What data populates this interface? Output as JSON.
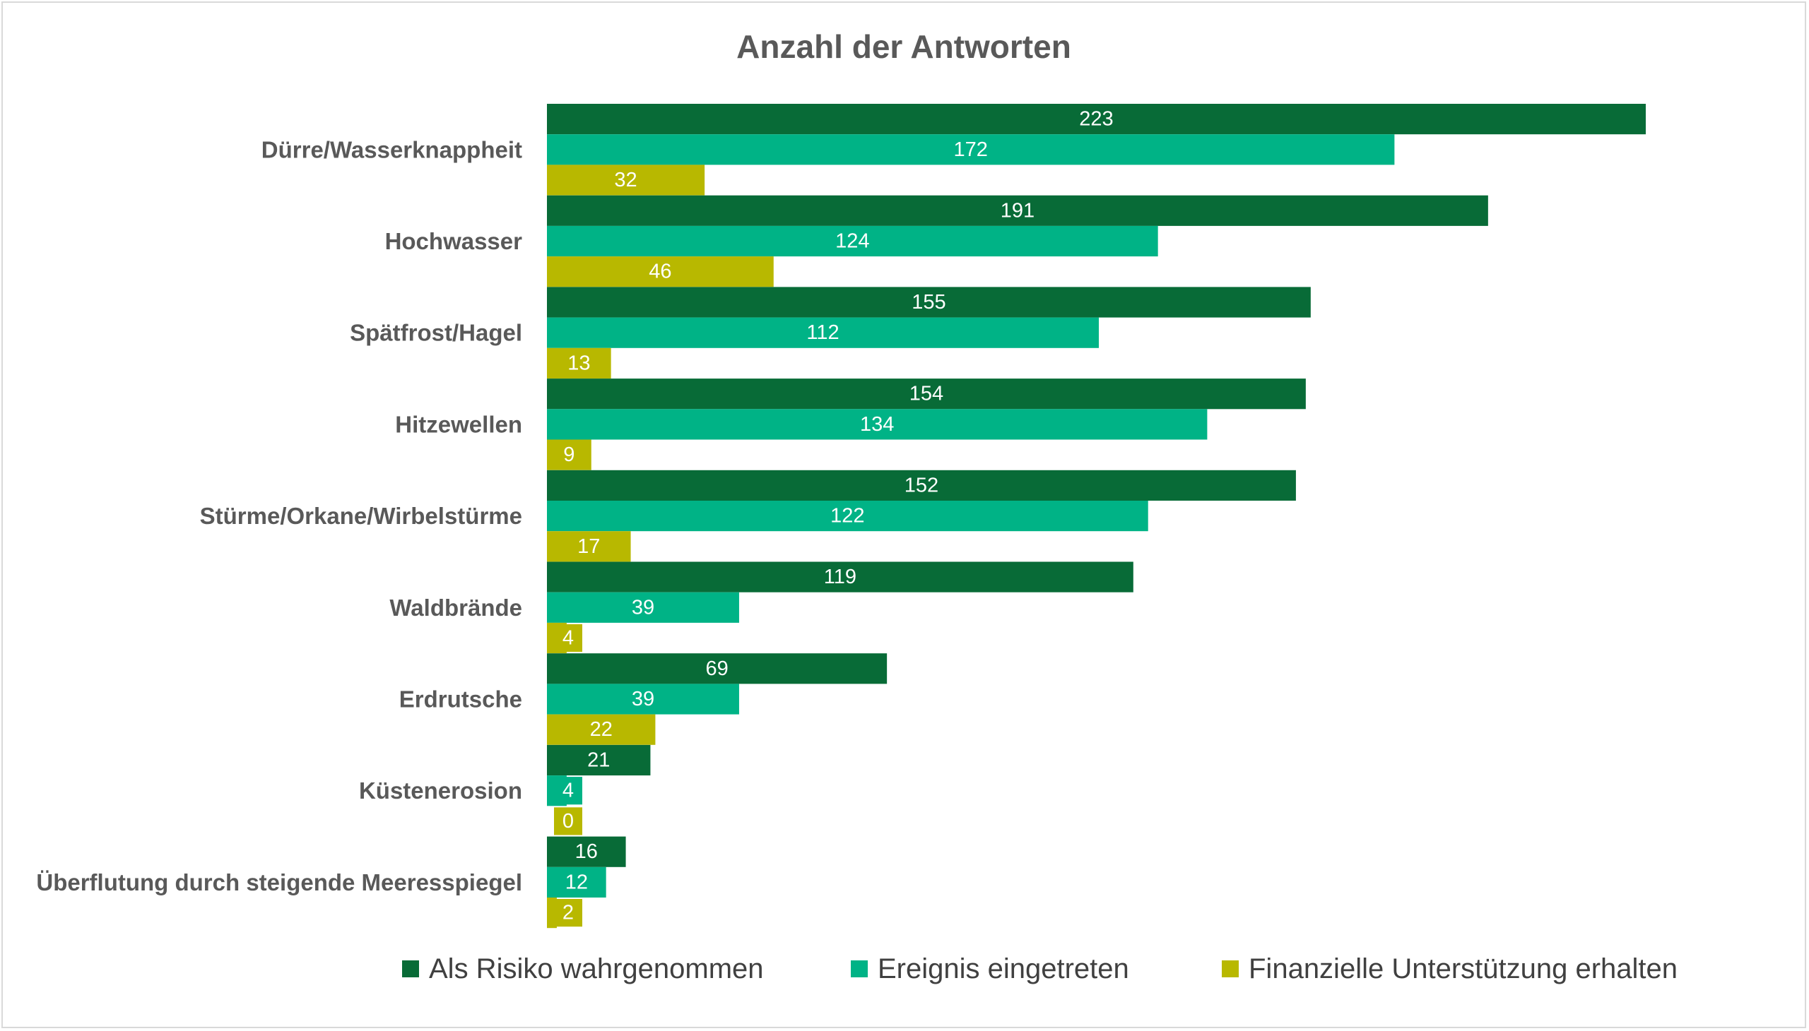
{
  "chart_data": {
    "type": "bar",
    "orientation": "horizontal",
    "title": "Anzahl der Antworten",
    "xlabel": "",
    "ylabel": "",
    "xlim": [
      0,
      223
    ],
    "grid": false,
    "legend": "bottom",
    "categories": [
      "Dürre/Wasserknappheit",
      "Hochwasser",
      "Spätfrost/Hagel",
      "Hitzewellen",
      "Stürme/Orkane/Wirbelstürme",
      "Waldbrände",
      "Erdrutsche",
      "Küstenerosion",
      "Überflutung durch steigende Meeresspiegel"
    ],
    "series": [
      {
        "name": "Als Risiko wahrgenommen",
        "color": "#086b37",
        "values": [
          223,
          191,
          155,
          154,
          152,
          119,
          69,
          21,
          16
        ]
      },
      {
        "name": "Ereignis eingetreten",
        "color": "#00b386",
        "values": [
          172,
          124,
          112,
          134,
          122,
          39,
          39,
          4,
          12
        ]
      },
      {
        "name": "Finanzielle Unterstützung erhalten",
        "color": "#b8b800",
        "values": [
          32,
          46,
          13,
          9,
          17,
          4,
          22,
          0,
          2
        ]
      }
    ]
  }
}
